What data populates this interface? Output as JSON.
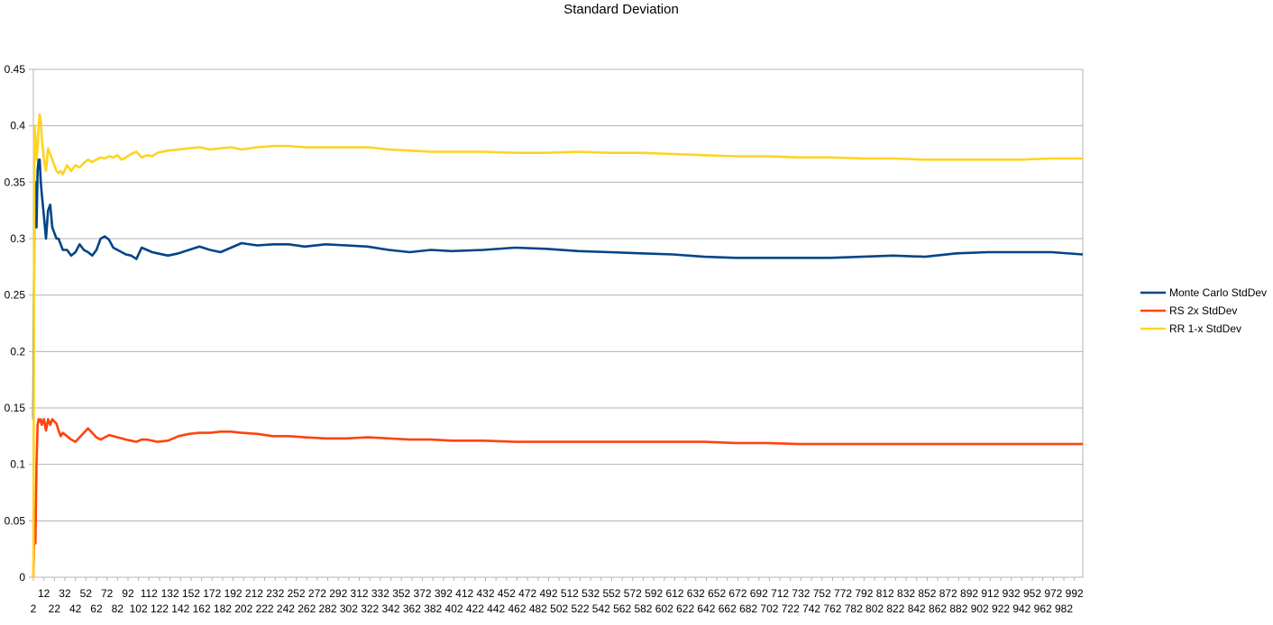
{
  "chart_data": {
    "type": "line",
    "title": "Standard Deviation",
    "xlabel": "",
    "ylabel": "",
    "ylim": [
      0,
      0.45
    ],
    "y_ticks": [
      "0",
      "0.05",
      "0.1",
      "0.15",
      "0.2",
      "0.25",
      "0.3",
      "0.35",
      "0.4",
      "0.45"
    ],
    "xlim": [
      2,
      1000
    ],
    "x_ticks_odd": [
      "2",
      "22",
      "42",
      "62",
      "82",
      "102",
      "122",
      "142",
      "162",
      "182",
      "202",
      "222",
      "242",
      "262",
      "282",
      "302",
      "322",
      "342",
      "362",
      "382",
      "402",
      "422",
      "442",
      "462",
      "482",
      "502",
      "522",
      "542",
      "562",
      "582",
      "602",
      "622",
      "642",
      "662",
      "682",
      "702",
      "722",
      "742",
      "762",
      "782",
      "802",
      "822",
      "842",
      "862",
      "882",
      "902",
      "922",
      "942",
      "962",
      "982"
    ],
    "x_ticks_even": [
      "12",
      "32",
      "52",
      "72",
      "92",
      "112",
      "132",
      "152",
      "172",
      "192",
      "212",
      "232",
      "252",
      "272",
      "292",
      "312",
      "332",
      "352",
      "372",
      "392",
      "412",
      "432",
      "452",
      "472",
      "492",
      "512",
      "532",
      "552",
      "572",
      "592",
      "612",
      "632",
      "652",
      "672",
      "692",
      "712",
      "732",
      "752",
      "772",
      "792",
      "812",
      "832",
      "852",
      "872",
      "892",
      "912",
      "932",
      "952",
      "972",
      "992"
    ],
    "grid": true,
    "legend_position": "right",
    "series": [
      {
        "name": "Monte Carlo StdDev",
        "color": "#004586",
        "x": [
          2,
          3,
          4,
          5,
          6,
          7,
          8,
          9,
          10,
          12,
          14,
          16,
          18,
          20,
          22,
          24,
          26,
          28,
          30,
          34,
          38,
          42,
          46,
          50,
          54,
          58,
          62,
          66,
          70,
          74,
          78,
          82,
          86,
          90,
          95,
          100,
          105,
          110,
          115,
          120,
          130,
          140,
          150,
          160,
          170,
          180,
          190,
          200,
          215,
          230,
          245,
          260,
          280,
          300,
          320,
          340,
          360,
          380,
          400,
          430,
          460,
          490,
          520,
          550,
          580,
          610,
          640,
          670,
          700,
          730,
          760,
          790,
          820,
          850,
          880,
          910,
          940,
          970,
          1000
        ],
        "values": [
          0.14,
          0.34,
          0.35,
          0.31,
          0.36,
          0.37,
          0.37,
          0.35,
          0.34,
          0.32,
          0.3,
          0.325,
          0.33,
          0.31,
          0.305,
          0.3,
          0.3,
          0.295,
          0.29,
          0.29,
          0.285,
          0.288,
          0.295,
          0.29,
          0.288,
          0.285,
          0.29,
          0.3,
          0.302,
          0.299,
          0.292,
          0.29,
          0.288,
          0.286,
          0.285,
          0.282,
          0.292,
          0.29,
          0.288,
          0.287,
          0.285,
          0.287,
          0.29,
          0.293,
          0.29,
          0.288,
          0.292,
          0.296,
          0.294,
          0.295,
          0.295,
          0.293,
          0.295,
          0.294,
          0.293,
          0.29,
          0.288,
          0.29,
          0.289,
          0.29,
          0.292,
          0.291,
          0.289,
          0.288,
          0.287,
          0.286,
          0.284,
          0.283,
          0.283,
          0.283,
          0.283,
          0.284,
          0.285,
          0.284,
          0.287,
          0.288,
          0.288,
          0.288,
          0.286
        ]
      },
      {
        "name": "RS 2x StdDev",
        "color": "#ff420e",
        "x": [
          2,
          3,
          4,
          5,
          6,
          7,
          8,
          9,
          10,
          12,
          14,
          16,
          18,
          20,
          22,
          24,
          26,
          28,
          30,
          34,
          38,
          42,
          46,
          50,
          54,
          58,
          62,
          66,
          70,
          74,
          78,
          82,
          86,
          90,
          95,
          100,
          105,
          110,
          115,
          120,
          130,
          140,
          150,
          160,
          170,
          180,
          190,
          200,
          215,
          230,
          245,
          260,
          280,
          300,
          320,
          340,
          360,
          380,
          400,
          430,
          460,
          490,
          520,
          550,
          580,
          610,
          640,
          670,
          700,
          730,
          760,
          790,
          820,
          850,
          880,
          910,
          940,
          970,
          1000
        ],
        "values": [
          0.0,
          0.05,
          0.03,
          0.1,
          0.135,
          0.14,
          0.138,
          0.14,
          0.135,
          0.14,
          0.13,
          0.14,
          0.135,
          0.14,
          0.138,
          0.136,
          0.13,
          0.125,
          0.128,
          0.125,
          0.122,
          0.12,
          0.124,
          0.128,
          0.132,
          0.128,
          0.124,
          0.122,
          0.124,
          0.126,
          0.125,
          0.124,
          0.123,
          0.122,
          0.121,
          0.12,
          0.122,
          0.122,
          0.121,
          0.12,
          0.121,
          0.125,
          0.127,
          0.128,
          0.128,
          0.129,
          0.129,
          0.128,
          0.127,
          0.125,
          0.125,
          0.124,
          0.123,
          0.123,
          0.124,
          0.123,
          0.122,
          0.122,
          0.121,
          0.121,
          0.12,
          0.12,
          0.12,
          0.12,
          0.12,
          0.12,
          0.12,
          0.119,
          0.119,
          0.118,
          0.118,
          0.118,
          0.118,
          0.118,
          0.118,
          0.118,
          0.118,
          0.118,
          0.118
        ]
      },
      {
        "name": "RR 1-x StdDev",
        "color": "#ffd320",
        "x": [
          2,
          3,
          4,
          5,
          6,
          7,
          8,
          9,
          10,
          12,
          14,
          16,
          18,
          20,
          22,
          24,
          26,
          28,
          30,
          34,
          38,
          42,
          46,
          50,
          54,
          58,
          62,
          66,
          70,
          74,
          78,
          82,
          86,
          90,
          95,
          100,
          105,
          110,
          115,
          120,
          130,
          140,
          150,
          160,
          170,
          180,
          190,
          200,
          215,
          230,
          245,
          260,
          280,
          300,
          320,
          340,
          360,
          380,
          400,
          430,
          460,
          490,
          520,
          550,
          580,
          610,
          640,
          670,
          700,
          730,
          760,
          790,
          820,
          850,
          880,
          910,
          940,
          970,
          1000
        ],
        "values": [
          0.0,
          0.4,
          0.39,
          0.37,
          0.38,
          0.4,
          0.41,
          0.405,
          0.39,
          0.37,
          0.36,
          0.38,
          0.375,
          0.37,
          0.365,
          0.36,
          0.358,
          0.36,
          0.357,
          0.365,
          0.36,
          0.365,
          0.363,
          0.367,
          0.37,
          0.368,
          0.37,
          0.372,
          0.371,
          0.373,
          0.372,
          0.374,
          0.37,
          0.372,
          0.375,
          0.377,
          0.372,
          0.374,
          0.373,
          0.376,
          0.378,
          0.379,
          0.38,
          0.381,
          0.379,
          0.38,
          0.381,
          0.379,
          0.381,
          0.382,
          0.382,
          0.381,
          0.381,
          0.381,
          0.381,
          0.379,
          0.378,
          0.377,
          0.377,
          0.377,
          0.376,
          0.376,
          0.377,
          0.376,
          0.376,
          0.375,
          0.374,
          0.373,
          0.373,
          0.372,
          0.372,
          0.371,
          0.371,
          0.37,
          0.37,
          0.37,
          0.37,
          0.371,
          0.371
        ]
      }
    ]
  }
}
